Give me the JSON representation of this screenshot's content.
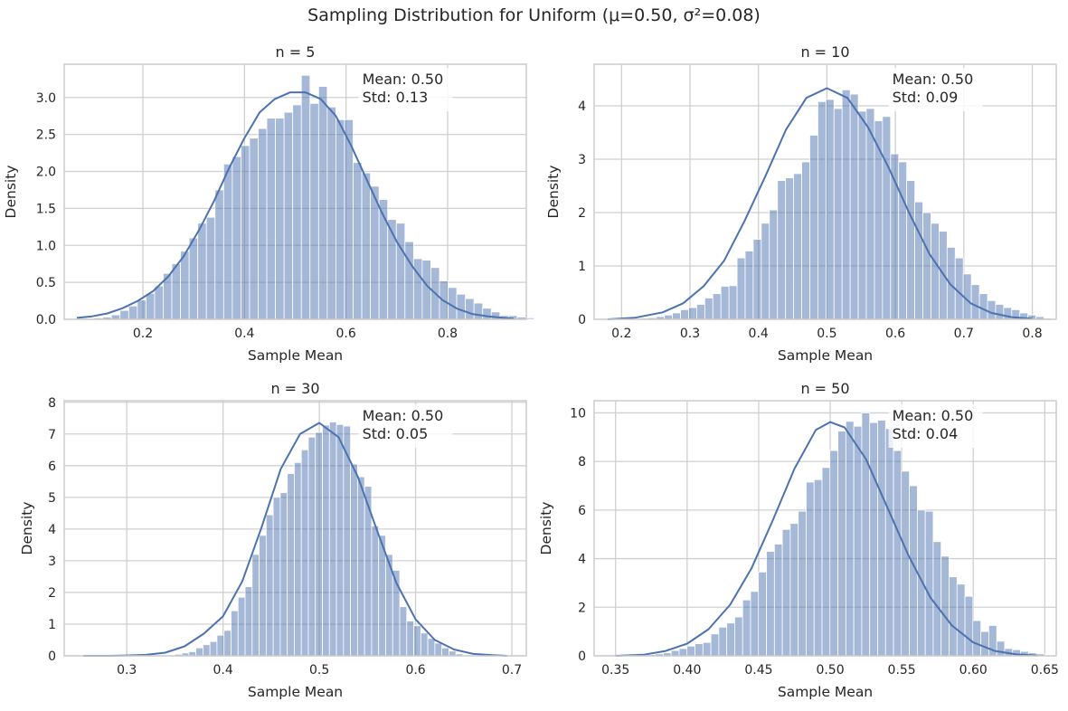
{
  "figure": {
    "title": "Sampling Distribution for Uniform (μ=0.50, σ²=0.08)"
  },
  "colors": {
    "bar_fill": "#4c72b0",
    "kde_line": "#4c72b0",
    "grid": "#d0d0d0",
    "axes_edge": "#cccccc"
  },
  "chart_data": [
    {
      "type": "bar",
      "title": "n = 5",
      "xlabel": "Sample Mean",
      "ylabel": "Density",
      "xlim": [
        0.045,
        0.955
      ],
      "ylim": [
        0,
        3.45
      ],
      "xticks": [
        "0.2",
        "0.4",
        "0.6",
        "0.8"
      ],
      "yticks": [
        "0.0",
        "0.5",
        "1.0",
        "1.5",
        "2.0",
        "2.5",
        "3.0"
      ],
      "annotation": [
        "Mean: 0.50",
        "Std: 0.13"
      ],
      "grid": true,
      "bins": {
        "start": 0.07,
        "width": 0.017
      },
      "values": [
        0.0,
        0.01,
        0.02,
        0.03,
        0.06,
        0.12,
        0.18,
        0.26,
        0.35,
        0.45,
        0.62,
        0.75,
        0.92,
        1.1,
        1.3,
        1.38,
        1.75,
        2.1,
        2.2,
        2.35,
        2.45,
        2.58,
        2.72,
        2.72,
        2.8,
        2.9,
        3.3,
        2.92,
        3.15,
        2.87,
        2.7,
        2.7,
        2.12,
        1.98,
        1.8,
        1.62,
        1.35,
        1.3,
        1.05,
        0.82,
        0.8,
        0.7,
        0.52,
        0.43,
        0.34,
        0.28,
        0.22,
        0.15,
        0.1,
        0.05,
        0.05,
        0.03,
        0.02,
        0.01
      ],
      "kde": {
        "x": [
          0.07,
          0.1,
          0.13,
          0.16,
          0.19,
          0.22,
          0.25,
          0.28,
          0.31,
          0.34,
          0.37,
          0.4,
          0.43,
          0.46,
          0.49,
          0.52,
          0.55,
          0.58,
          0.61,
          0.64,
          0.67,
          0.7,
          0.73,
          0.76,
          0.79,
          0.82,
          0.85,
          0.88,
          0.91,
          0.93
        ],
        "y": [
          0.02,
          0.04,
          0.08,
          0.15,
          0.25,
          0.38,
          0.58,
          0.85,
          1.2,
          1.6,
          2.05,
          2.45,
          2.8,
          2.98,
          3.07,
          3.07,
          2.98,
          2.75,
          2.35,
          1.9,
          1.45,
          1.05,
          0.72,
          0.45,
          0.26,
          0.14,
          0.07,
          0.04,
          0.02,
          0.01
        ]
      }
    },
    {
      "type": "bar",
      "title": "n = 10",
      "xlabel": "Sample Mean",
      "ylabel": "Density",
      "xlim": [
        0.16,
        0.835
      ],
      "ylim": [
        0,
        4.78
      ],
      "xticks": [
        "0.2",
        "0.3",
        "0.4",
        "0.5",
        "0.6",
        "0.7",
        "0.8"
      ],
      "yticks": [
        "0",
        "1",
        "2",
        "3",
        "4"
      ],
      "annotation": [
        "Mean: 0.50",
        "Std: 0.09"
      ],
      "grid": true,
      "bins": {
        "start": 0.18,
        "width": 0.0118
      },
      "values": [
        0.0,
        0.0,
        0.01,
        0.01,
        0.02,
        0.03,
        0.05,
        0.08,
        0.12,
        0.18,
        0.22,
        0.28,
        0.4,
        0.48,
        0.62,
        0.63,
        1.15,
        1.28,
        1.5,
        1.8,
        2.05,
        2.6,
        2.65,
        2.73,
        2.95,
        3.45,
        4.08,
        4.12,
        3.95,
        4.3,
        4.22,
        3.9,
        3.95,
        3.72,
        3.8,
        3.1,
        2.95,
        2.6,
        2.2,
        2.0,
        1.8,
        1.65,
        1.35,
        1.15,
        0.85,
        0.65,
        0.48,
        0.35,
        0.28,
        0.22,
        0.18,
        0.12,
        0.08,
        0.05,
        0.02,
        0.01
      ],
      "kde": {
        "x": [
          0.18,
          0.22,
          0.26,
          0.29,
          0.32,
          0.35,
          0.38,
          0.41,
          0.44,
          0.47,
          0.5,
          0.53,
          0.56,
          0.59,
          0.62,
          0.65,
          0.68,
          0.71,
          0.74,
          0.77,
          0.8
        ],
        "y": [
          0.0,
          0.03,
          0.13,
          0.3,
          0.62,
          1.1,
          1.85,
          2.68,
          3.55,
          4.15,
          4.33,
          4.15,
          3.6,
          2.85,
          2.0,
          1.22,
          0.66,
          0.3,
          0.12,
          0.04,
          0.01
        ]
      }
    },
    {
      "type": "bar",
      "title": "n = 30",
      "xlabel": "Sample Mean",
      "ylabel": "Density",
      "xlim": [
        0.235,
        0.715
      ],
      "ylim": [
        0,
        8.05
      ],
      "xticks": [
        "0.3",
        "0.4",
        "0.5",
        "0.6",
        "0.7"
      ],
      "yticks": [
        "0",
        "1",
        "2",
        "3",
        "4",
        "5",
        "6",
        "7",
        "8"
      ],
      "annotation": [
        "Mean: 0.50",
        "Std: 0.05"
      ],
      "grid": true,
      "bins": {
        "start": 0.255,
        "width": 0.0073
      },
      "values": [
        0.0,
        0.0,
        0.0,
        0.0,
        0.0,
        0.0,
        0.0,
        0.0,
        0.0,
        0.0,
        0.0,
        0.01,
        0.02,
        0.05,
        0.09,
        0.13,
        0.25,
        0.35,
        0.45,
        0.65,
        0.8,
        1.42,
        1.85,
        2.18,
        3.2,
        3.8,
        4.45,
        5.0,
        5.15,
        5.75,
        6.1,
        6.5,
        6.9,
        7.05,
        7.28,
        7.38,
        7.3,
        7.25,
        6.05,
        5.65,
        5.35,
        4.1,
        3.8,
        3.2,
        2.7,
        1.55,
        1.1,
        0.95,
        0.72,
        0.55,
        0.4,
        0.25,
        0.15,
        0.06,
        0.02,
        0.01,
        0.0,
        0.0,
        0.0,
        0.0
      ],
      "kde": {
        "x": [
          0.255,
          0.28,
          0.3,
          0.32,
          0.34,
          0.36,
          0.38,
          0.4,
          0.42,
          0.44,
          0.46,
          0.48,
          0.5,
          0.52,
          0.54,
          0.56,
          0.58,
          0.6,
          0.62,
          0.64,
          0.66,
          0.68,
          0.695
        ],
        "y": [
          0.0,
          0.0,
          0.01,
          0.03,
          0.1,
          0.3,
          0.7,
          1.25,
          2.35,
          4.05,
          5.9,
          7.0,
          7.35,
          6.9,
          5.65,
          3.95,
          2.3,
          1.15,
          0.5,
          0.2,
          0.06,
          0.02,
          0.0
        ]
      }
    },
    {
      "type": "bar",
      "title": "n = 50",
      "xlabel": "Sample Mean",
      "ylabel": "Density",
      "xlim": [
        0.335,
        0.658
      ],
      "ylim": [
        0,
        10.5
      ],
      "xticks": [
        "0.35",
        "0.40",
        "0.45",
        "0.50",
        "0.55",
        "0.60",
        "0.65"
      ],
      "yticks": [
        "0",
        "2",
        "4",
        "6",
        "8",
        "10"
      ],
      "annotation": [
        "Mean: 0.50",
        "Std: 0.04"
      ],
      "grid": true,
      "bins": {
        "start": 0.35,
        "width": 0.00555
      },
      "values": [
        0.0,
        0.0,
        0.01,
        0.02,
        0.05,
        0.08,
        0.12,
        0.22,
        0.3,
        0.4,
        0.5,
        0.55,
        0.9,
        1.18,
        1.35,
        1.6,
        2.3,
        2.65,
        3.45,
        4.3,
        4.6,
        5.2,
        5.45,
        5.95,
        7.15,
        7.25,
        7.75,
        8.45,
        9.25,
        9.65,
        9.45,
        10.0,
        9.6,
        9.7,
        9.35,
        8.45,
        7.6,
        7.0,
        6.0,
        5.95,
        4.7,
        4.1,
        3.25,
        2.95,
        2.45,
        1.45,
        1.0,
        1.25,
        0.6,
        0.3,
        0.25,
        0.18,
        0.12,
        0.08,
        0.03,
        0.01
      ],
      "kde": {
        "x": [
          0.35,
          0.37,
          0.385,
          0.4,
          0.415,
          0.43,
          0.445,
          0.46,
          0.475,
          0.49,
          0.5,
          0.51,
          0.525,
          0.54,
          0.555,
          0.57,
          0.585,
          0.6,
          0.615,
          0.63,
          0.645
        ],
        "y": [
          0.0,
          0.05,
          0.2,
          0.5,
          1.1,
          2.1,
          3.6,
          5.6,
          7.7,
          9.3,
          9.62,
          9.4,
          8.1,
          6.1,
          4.1,
          2.4,
          1.25,
          0.55,
          0.2,
          0.06,
          0.01
        ]
      }
    }
  ]
}
